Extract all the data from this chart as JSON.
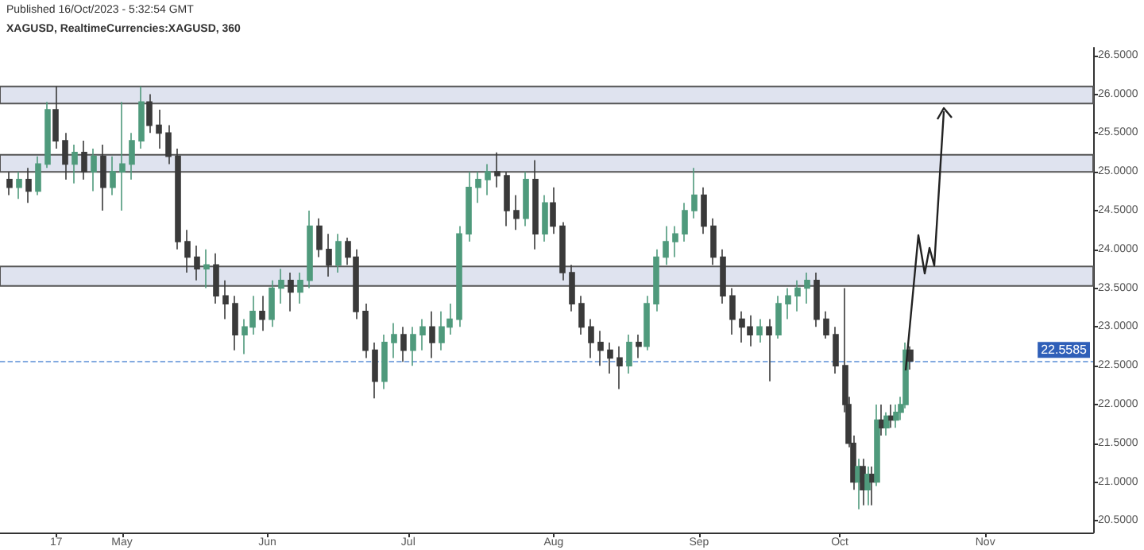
{
  "chart_data": {
    "type": "candlestick",
    "title": "XAGUSD, RealtimeCurrencies:XAGUSD, 360",
    "annotations": [
      "Published 16/Oct/2023 - 5:32:54 GMT"
    ],
    "x": [
      "2023-04-07",
      "2023-04-09",
      "2023-04-11",
      "2023-04-13",
      "2023-04-15",
      "2023-04-17",
      "2023-04-19",
      "2023-04-21",
      "2023-04-23",
      "2023-04-25",
      "2023-04-27",
      "2023-04-29",
      "2023-05-01",
      "2023-05-03",
      "2023-05-05",
      "2023-05-07",
      "2023-05-09",
      "2023-05-11",
      "2023-05-13",
      "2023-05-15",
      "2023-05-17",
      "2023-05-19",
      "2023-05-21",
      "2023-05-23",
      "2023-05-25",
      "2023-05-27",
      "2023-05-29",
      "2023-05-31",
      "2023-06-02",
      "2023-06-04",
      "2023-06-06",
      "2023-06-08",
      "2023-06-10",
      "2023-06-12",
      "2023-06-14",
      "2023-06-16",
      "2023-06-18",
      "2023-06-20",
      "2023-06-22",
      "2023-06-24",
      "2023-06-26",
      "2023-06-28",
      "2023-06-30",
      "2023-07-02",
      "2023-07-04",
      "2023-07-06",
      "2023-07-08",
      "2023-07-10",
      "2023-07-12",
      "2023-07-14",
      "2023-07-16",
      "2023-07-18",
      "2023-07-20",
      "2023-07-22",
      "2023-07-24",
      "2023-07-26",
      "2023-07-28",
      "2023-07-30",
      "2023-08-01",
      "2023-08-03",
      "2023-08-05",
      "2023-08-07",
      "2023-08-09",
      "2023-08-11",
      "2023-08-13",
      "2023-08-15",
      "2023-08-17",
      "2023-08-19",
      "2023-08-21",
      "2023-08-23",
      "2023-08-25",
      "2023-08-27",
      "2023-08-29",
      "2023-08-31",
      "2023-09-02",
      "2023-09-04",
      "2023-09-06",
      "2023-09-08",
      "2023-09-10",
      "2023-09-12",
      "2023-09-14",
      "2023-09-16",
      "2023-09-18",
      "2023-09-20",
      "2023-09-22",
      "2023-09-24",
      "2023-09-26",
      "2023-09-28",
      "2023-09-30",
      "2023-10-02",
      "2023-10-03",
      "2023-10-04",
      "2023-10-05",
      "2023-10-06",
      "2023-10-07",
      "2023-10-08",
      "2023-10-09",
      "2023-10-10",
      "2023-10-11",
      "2023-10-12",
      "2023-10-13",
      "2023-10-14",
      "2023-10-15",
      "2023-10-16"
    ],
    "ohlc": [
      [
        24.9,
        25.0,
        24.7,
        24.8
      ],
      [
        24.8,
        25.0,
        24.65,
        24.9
      ],
      [
        24.9,
        25.05,
        24.6,
        24.75
      ],
      [
        24.75,
        25.2,
        24.7,
        25.1
      ],
      [
        25.1,
        25.9,
        25.05,
        25.8
      ],
      [
        25.8,
        26.1,
        25.3,
        25.4
      ],
      [
        25.4,
        25.5,
        24.9,
        25.1
      ],
      [
        25.1,
        25.35,
        24.85,
        25.25
      ],
      [
        25.25,
        25.4,
        24.9,
        25.0
      ],
      [
        25.0,
        25.3,
        24.75,
        25.2
      ],
      [
        25.2,
        25.35,
        24.5,
        24.8
      ],
      [
        24.8,
        25.2,
        24.7,
        25.0
      ],
      [
        25.0,
        25.9,
        24.5,
        25.1
      ],
      [
        25.1,
        25.5,
        24.9,
        25.4
      ],
      [
        25.4,
        26.1,
        25.3,
        25.9
      ],
      [
        25.9,
        26.0,
        25.5,
        25.6
      ],
      [
        25.6,
        25.8,
        25.3,
        25.5
      ],
      [
        25.5,
        25.6,
        25.1,
        25.2
      ],
      [
        25.2,
        25.3,
        24.0,
        24.1
      ],
      [
        24.1,
        24.25,
        23.7,
        23.9
      ],
      [
        23.9,
        24.05,
        23.6,
        23.75
      ],
      [
        23.75,
        24.0,
        23.5,
        23.8
      ],
      [
        23.8,
        23.95,
        23.3,
        23.4
      ],
      [
        23.4,
        23.6,
        23.1,
        23.3
      ],
      [
        23.3,
        23.4,
        22.7,
        22.9
      ],
      [
        22.9,
        23.1,
        22.65,
        23.0
      ],
      [
        23.0,
        23.4,
        22.9,
        23.2
      ],
      [
        23.2,
        23.4,
        22.95,
        23.1
      ],
      [
        23.1,
        23.6,
        23.0,
        23.5
      ],
      [
        23.5,
        23.75,
        23.3,
        23.6
      ],
      [
        23.6,
        23.7,
        23.2,
        23.45
      ],
      [
        23.45,
        23.7,
        23.3,
        23.6
      ],
      [
        23.6,
        24.5,
        23.5,
        24.3
      ],
      [
        24.3,
        24.4,
        23.9,
        24.0
      ],
      [
        24.0,
        24.2,
        23.65,
        23.8
      ],
      [
        23.8,
        24.2,
        23.7,
        24.1
      ],
      [
        24.1,
        24.15,
        23.8,
        23.9
      ],
      [
        23.9,
        24.0,
        23.1,
        23.2
      ],
      [
        23.2,
        23.3,
        22.6,
        22.7
      ],
      [
        22.7,
        22.8,
        22.08,
        22.3
      ],
      [
        22.3,
        22.9,
        22.2,
        22.8
      ],
      [
        22.8,
        23.05,
        22.6,
        22.9
      ],
      [
        22.9,
        23.0,
        22.55,
        22.7
      ],
      [
        22.7,
        23.0,
        22.5,
        22.9
      ],
      [
        22.9,
        23.1,
        22.7,
        23.0
      ],
      [
        23.0,
        23.2,
        22.6,
        22.8
      ],
      [
        22.8,
        23.2,
        22.7,
        23.0
      ],
      [
        23.0,
        23.3,
        22.9,
        23.1
      ],
      [
        23.1,
        24.3,
        23.0,
        24.2
      ],
      [
        24.2,
        25.0,
        24.1,
        24.8
      ],
      [
        24.8,
        25.0,
        24.6,
        24.9
      ],
      [
        24.9,
        25.1,
        24.7,
        25.0
      ],
      [
        25.0,
        25.25,
        24.8,
        24.95
      ],
      [
        24.95,
        25.0,
        24.3,
        24.5
      ],
      [
        24.5,
        24.7,
        24.25,
        24.4
      ],
      [
        24.4,
        25.0,
        24.3,
        24.9
      ],
      [
        24.9,
        25.15,
        24.0,
        24.2
      ],
      [
        24.2,
        24.7,
        24.1,
        24.6
      ],
      [
        24.6,
        24.8,
        24.2,
        24.3
      ],
      [
        24.3,
        24.35,
        23.6,
        23.7
      ],
      [
        23.7,
        23.8,
        23.2,
        23.3
      ],
      [
        23.3,
        23.4,
        22.9,
        23.0
      ],
      [
        23.0,
        23.1,
        22.6,
        22.8
      ],
      [
        22.8,
        22.95,
        22.5,
        22.7
      ],
      [
        22.7,
        22.8,
        22.4,
        22.6
      ],
      [
        22.6,
        22.75,
        22.2,
        22.5
      ],
      [
        22.5,
        22.9,
        22.4,
        22.8
      ],
      [
        22.8,
        22.9,
        22.6,
        22.75
      ],
      [
        22.75,
        23.4,
        22.7,
        23.3
      ],
      [
        23.3,
        24.0,
        23.2,
        23.9
      ],
      [
        23.9,
        24.3,
        23.8,
        24.1
      ],
      [
        24.1,
        24.3,
        23.9,
        24.2
      ],
      [
        24.2,
        24.6,
        24.1,
        24.5
      ],
      [
        24.5,
        25.05,
        24.4,
        24.7
      ],
      [
        24.7,
        24.8,
        24.2,
        24.3
      ],
      [
        24.3,
        24.4,
        23.8,
        23.9
      ],
      [
        23.9,
        24.0,
        23.3,
        23.4
      ],
      [
        23.4,
        23.5,
        22.9,
        23.1
      ],
      [
        23.1,
        23.2,
        22.8,
        23.0
      ],
      [
        23.0,
        23.15,
        22.75,
        22.9
      ],
      [
        22.9,
        23.1,
        22.8,
        23.0
      ],
      [
        23.0,
        23.1,
        22.3,
        22.9
      ],
      [
        22.9,
        23.4,
        22.85,
        23.3
      ],
      [
        23.3,
        23.5,
        23.1,
        23.4
      ],
      [
        23.4,
        23.6,
        23.2,
        23.5
      ],
      [
        23.5,
        23.7,
        23.3,
        23.6
      ],
      [
        23.6,
        23.7,
        23.0,
        23.1
      ],
      [
        23.1,
        23.2,
        22.85,
        22.9
      ],
      [
        22.9,
        23.0,
        22.4,
        22.5
      ],
      [
        22.5,
        23.5,
        21.9,
        22.0
      ],
      [
        22.0,
        22.1,
        21.45,
        21.5
      ],
      [
        21.5,
        21.6,
        20.9,
        21.0
      ],
      [
        21.0,
        21.3,
        20.65,
        21.2
      ],
      [
        21.2,
        21.3,
        20.7,
        20.9
      ],
      [
        20.9,
        21.2,
        20.7,
        21.1
      ],
      [
        21.1,
        21.2,
        20.7,
        21.0
      ],
      [
        21.0,
        22.0,
        20.95,
        21.8
      ],
      [
        21.8,
        22.0,
        21.6,
        21.7
      ],
      [
        21.7,
        21.9,
        21.6,
        21.85
      ],
      [
        21.85,
        22.0,
        21.7,
        21.8
      ],
      [
        21.8,
        22.0,
        21.7,
        21.9
      ],
      [
        21.9,
        22.1,
        21.8,
        22.0
      ],
      [
        22.0,
        22.8,
        21.95,
        22.7
      ],
      [
        22.7,
        22.75,
        22.45,
        22.56
      ]
    ],
    "xlim": [
      "2023-04-05",
      "2023-11-24"
    ],
    "xticks": [
      {
        "value": "2023-04-17",
        "label": "17"
      },
      {
        "value": "2023-05-01",
        "label": "May"
      },
      {
        "value": "2023-06-01",
        "label": "Jun"
      },
      {
        "value": "2023-07-01",
        "label": "Jul"
      },
      {
        "value": "2023-08-01",
        "label": "Aug"
      },
      {
        "value": "2023-09-01",
        "label": "Sep"
      },
      {
        "value": "2023-10-01",
        "label": "Oct"
      },
      {
        "value": "2023-11-01",
        "label": "Nov"
      }
    ],
    "ylim": [
      20.35,
      26.6
    ],
    "yticks": [
      {
        "value": 20.5,
        "label": "20.5000"
      },
      {
        "value": 21,
        "label": "21.0000"
      },
      {
        "value": 21.5,
        "label": "21.5000"
      },
      {
        "value": 22,
        "label": "22.0000"
      },
      {
        "value": 22.5,
        "label": "22.5000"
      },
      {
        "value": 23,
        "label": "23.0000"
      },
      {
        "value": 23.5,
        "label": "23.5000"
      },
      {
        "value": 24,
        "label": "24.0000"
      },
      {
        "value": 24.5,
        "label": "24.5000"
      },
      {
        "value": 25,
        "label": "25.0000"
      },
      {
        "value": 25.5,
        "label": "25.5000"
      },
      {
        "value": 26,
        "label": "26.0000"
      },
      {
        "value": 26.5,
        "label": "26.5000"
      }
    ],
    "ref_lines": [
      {
        "axis": "y",
        "value": 22.5585,
        "label": "22.5585",
        "color": "#5b8fd6",
        "line_style": "dashed"
      }
    ],
    "bands": [
      {
        "axis": "y",
        "from": 25.88,
        "to": 26.1,
        "color": "#dfe3ef"
      },
      {
        "axis": "y",
        "from": 25.0,
        "to": 25.22,
        "color": "#dfe3ef"
      },
      {
        "axis": "y",
        "from": 23.53,
        "to": 23.78,
        "color": "#dfe3ef"
      }
    ],
    "grid": false
  }
}
